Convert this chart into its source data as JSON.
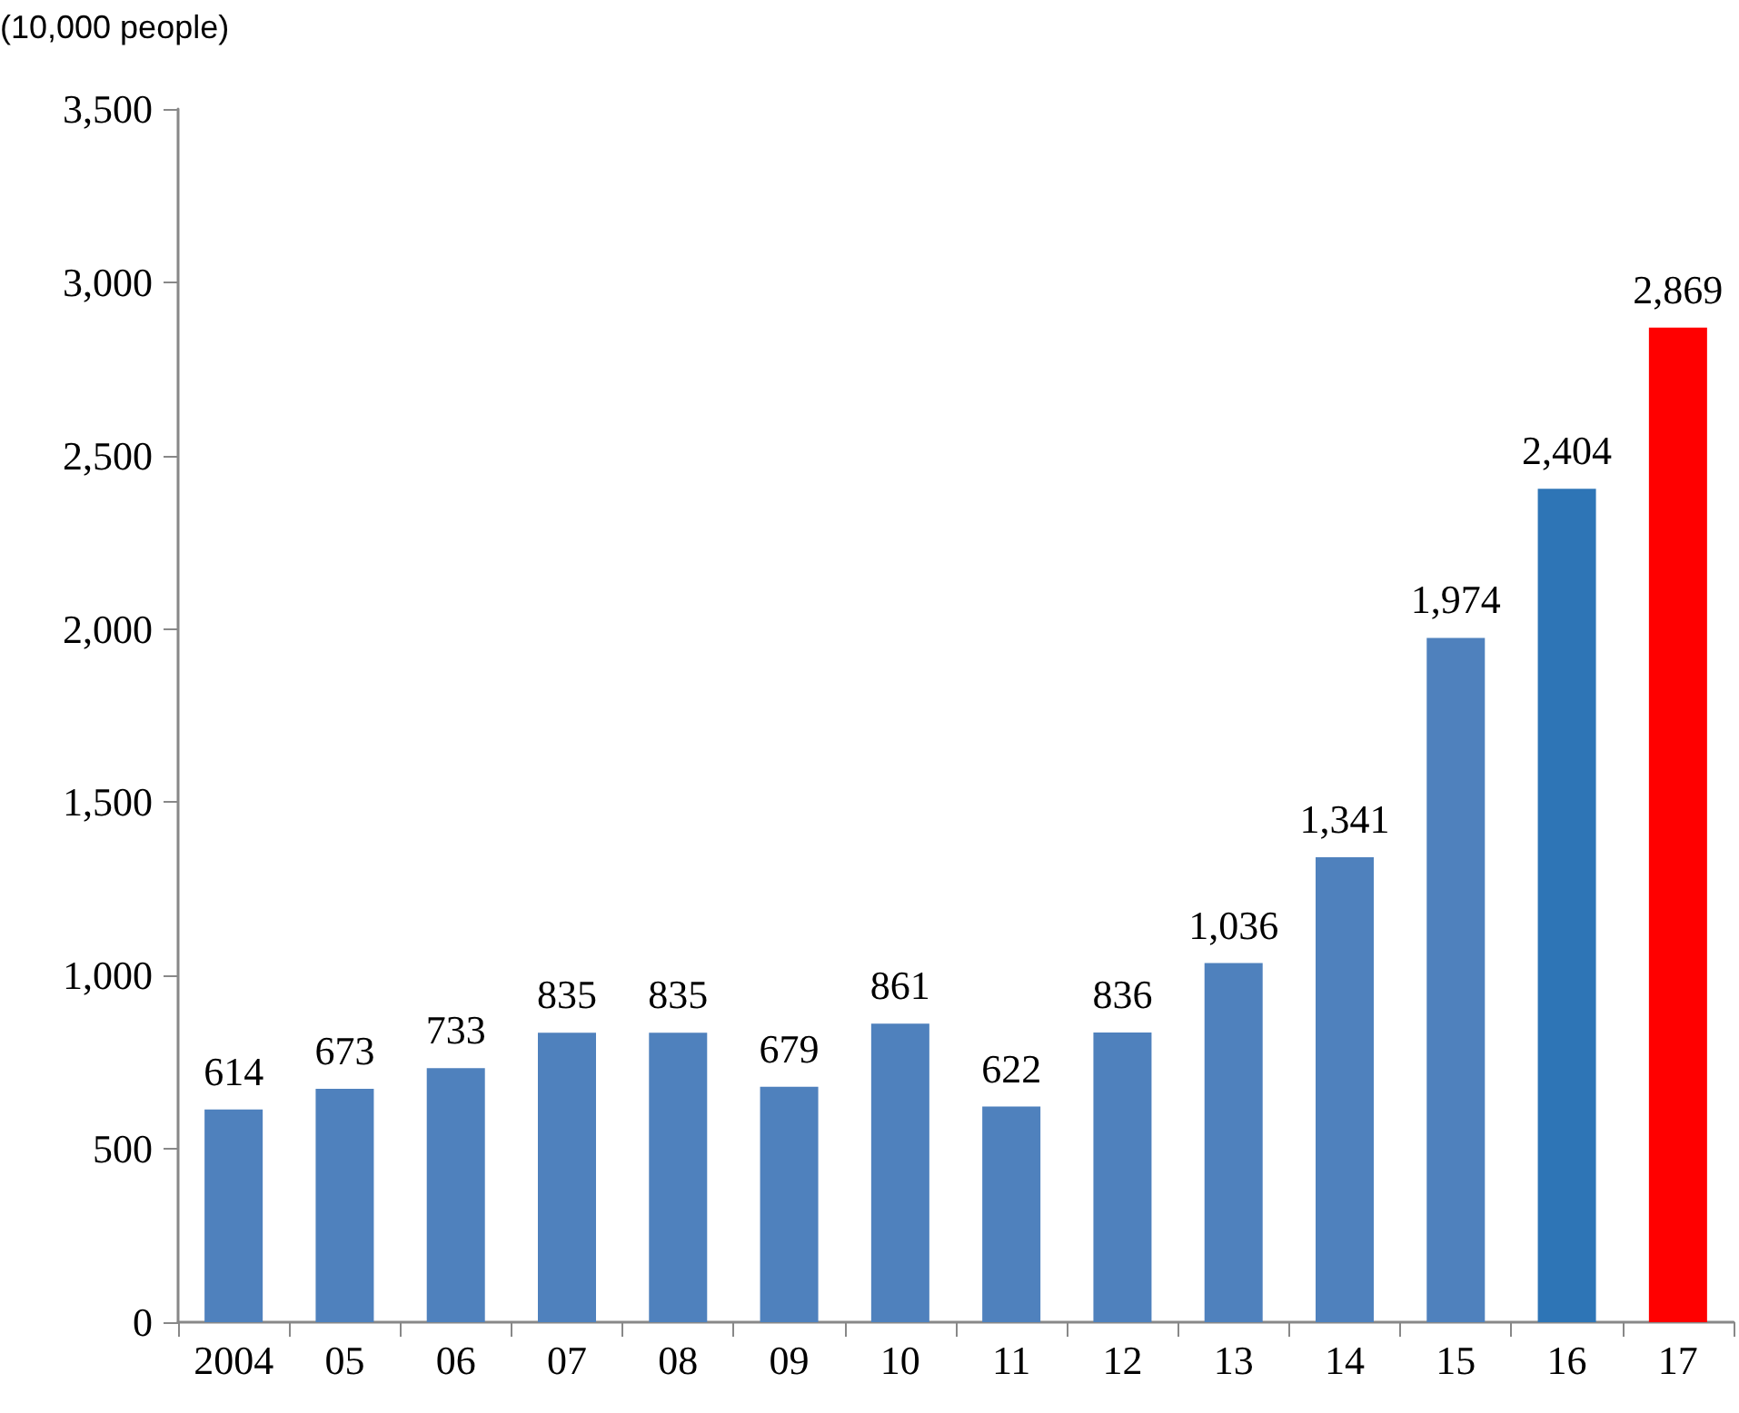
{
  "chart_data": {
    "type": "bar",
    "ylabel": "(10,000 people)",
    "categories": [
      "2004",
      "05",
      "06",
      "07",
      "08",
      "09",
      "10",
      "11",
      "12",
      "13",
      "14",
      "15",
      "16",
      "17"
    ],
    "values": [
      614,
      673,
      733,
      835,
      835,
      679,
      861,
      622,
      836,
      1036,
      1341,
      1974,
      2404,
      2869
    ],
    "value_labels": [
      "614",
      "673",
      "733",
      "835",
      "835",
      "679",
      "861",
      "622",
      "836",
      "1,036",
      "1,341",
      "1,974",
      "2,404",
      "2,869"
    ],
    "colors": [
      "#4f81bd",
      "#4f81bd",
      "#4f81bd",
      "#4f81bd",
      "#4f81bd",
      "#4f81bd",
      "#4f81bd",
      "#4f81bd",
      "#4f81bd",
      "#4f81bd",
      "#4f81bd",
      "#4f81bd",
      "#2e75b6",
      "#ff0000"
    ],
    "ylim": [
      0,
      3500
    ],
    "yticks": [
      0,
      500,
      {
        "value": 1000,
        "label": "1,000"
      },
      {
        "value": 1500,
        "label": "1,500"
      },
      {
        "value": 2000,
        "label": "2,000"
      },
      {
        "value": 2500,
        "label": "2,500"
      },
      {
        "value": 3000,
        "label": "3,000"
      },
      {
        "value": 3500,
        "label": "3,500"
      }
    ],
    "grid": false
  }
}
